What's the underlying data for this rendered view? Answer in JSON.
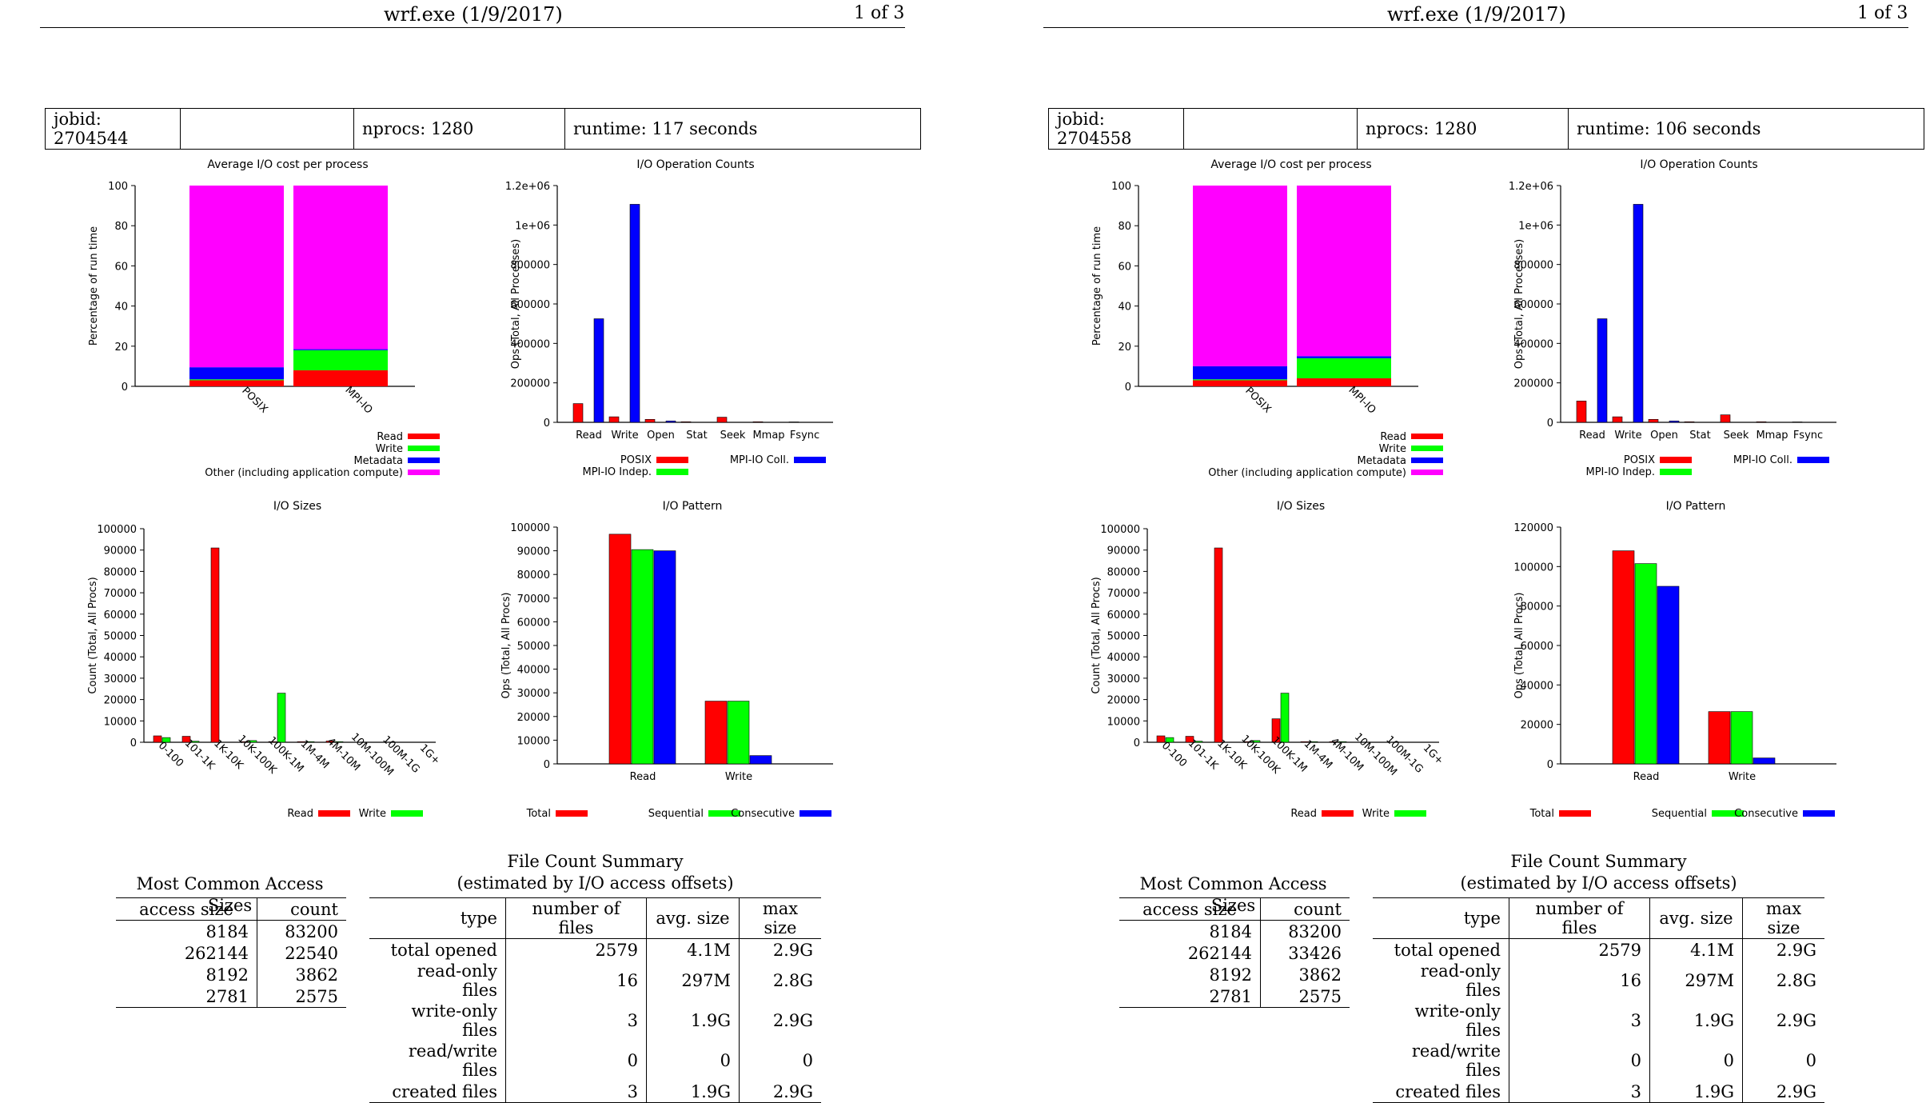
{
  "colors": {
    "red": "#ff0000",
    "green": "#00ff00",
    "blue": "#0000ff",
    "magenta": "#ff00ff"
  },
  "pages": [
    {
      "header": {
        "title": "wrf.exe (1/9/2017)",
        "page": "1 of 3"
      },
      "info": {
        "jobid": "jobid: 2704544",
        "blank": "",
        "nprocs": "nprocs: 1280",
        "runtime": "runtime: 117 seconds"
      },
      "chart_data": [
        {
          "type": "bar",
          "stacked": true,
          "title": "Average I/O cost per process",
          "ylabel": "Percentage of run time",
          "categories": [
            "POSIX",
            "MPI-IO"
          ],
          "ylim": [
            0,
            100
          ],
          "yticks": [
            "0",
            "20",
            "40",
            "60",
            "80",
            "100"
          ],
          "series": [
            {
              "name": "Read",
              "color": "red",
              "values": [
                3,
                8
              ]
            },
            {
              "name": "Write",
              "color": "green",
              "values": [
                0.5,
                10
              ]
            },
            {
              "name": "Metadata",
              "color": "blue",
              "values": [
                6,
                0.5
              ]
            },
            {
              "name": "Other (including application compute)",
              "color": "magenta",
              "values": [
                90.5,
                81.5
              ]
            }
          ],
          "legend": "bottom-right"
        },
        {
          "type": "bar",
          "title": "I/O Operation Counts",
          "ylabel": "Ops (Total, All Processes)",
          "categories": [
            "Read",
            "Write",
            "Open",
            "Stat",
            "Seek",
            "Mmap",
            "Fsync"
          ],
          "ylim": [
            0,
            1200000
          ],
          "yticks": [
            "0",
            "200000",
            "400000",
            "600000",
            "800000",
            "1e+06",
            "1.2e+06"
          ],
          "series": [
            {
              "name": "POSIX",
              "color": "red",
              "values": [
                95000,
                28000,
                15000,
                3000,
                26000,
                3000,
                2000
              ]
            },
            {
              "name": "MPI-IO Indep.",
              "color": "green",
              "values": [
                0,
                0,
                0,
                0,
                0,
                0,
                0
              ]
            },
            {
              "name": "MPI-IO Coll.",
              "color": "blue",
              "values": [
                525000,
                1105000,
                7000,
                0,
                0,
                0,
                0
              ]
            }
          ],
          "legend": "bottom"
        },
        {
          "type": "bar",
          "title": "I/O Sizes",
          "ylabel": "Count (Total, All Procs)",
          "categories": [
            "0-100",
            "101-1K",
            "1K-10K",
            "10K-100K",
            "100K-1M",
            "1M-4M",
            "4M-10M",
            "10M-100M",
            "100M-1G",
            "1G+"
          ],
          "ylim": [
            0,
            100000
          ],
          "yticks": [
            "0",
            "10000",
            "20000",
            "30000",
            "40000",
            "50000",
            "60000",
            "70000",
            "80000",
            "90000",
            "100000"
          ],
          "series": [
            {
              "name": "Read",
              "color": "red",
              "values": [
                3000,
                2800,
                91000,
                300,
                300,
                300,
                600,
                0,
                0,
                0
              ]
            },
            {
              "name": "Write",
              "color": "green",
              "values": [
                2200,
                500,
                0,
                800,
                23000,
                300,
                300,
                0,
                0,
                0
              ]
            }
          ],
          "legend": "bottom-right"
        },
        {
          "type": "bar",
          "title": "I/O Pattern",
          "ylabel": "Ops (Total, All Procs)",
          "categories": [
            "Read",
            "Write"
          ],
          "ylim": [
            0,
            100000
          ],
          "yticks": [
            "0",
            "10000",
            "20000",
            "30000",
            "40000",
            "50000",
            "60000",
            "70000",
            "80000",
            "90000",
            "100000"
          ],
          "series": [
            {
              "name": "Total",
              "color": "red",
              "values": [
                97000,
                26500
              ]
            },
            {
              "name": "Sequential",
              "color": "green",
              "values": [
                90500,
                26500
              ]
            },
            {
              "name": "Consecutive",
              "color": "blue",
              "values": [
                90000,
                3500
              ]
            }
          ],
          "legend": "bottom"
        }
      ],
      "access": {
        "title": "Most Common Access Sizes",
        "h1": "access size",
        "h2": "count",
        "rows": [
          {
            "a": "8184",
            "b": "83200"
          },
          {
            "a": "262144",
            "b": "22540"
          },
          {
            "a": "8192",
            "b": "3862"
          },
          {
            "a": "2781",
            "b": "2575"
          }
        ]
      },
      "files": {
        "title1": "File Count Summary",
        "title2": "(estimated by I/O access offsets)",
        "h1": "type",
        "h2": "number of files",
        "h3": "avg. size",
        "h4": "max size",
        "rows": [
          {
            "a": "total opened",
            "b": "2579",
            "c": "4.1M",
            "d": "2.9G"
          },
          {
            "a": "read-only files",
            "b": "16",
            "c": "297M",
            "d": "2.8G"
          },
          {
            "a": "write-only files",
            "b": "3",
            "c": "1.9G",
            "d": "2.9G"
          },
          {
            "a": "read/write files",
            "b": "0",
            "c": "0",
            "d": "0"
          },
          {
            "a": "created files",
            "b": "3",
            "c": "1.9G",
            "d": "2.9G"
          }
        ]
      }
    },
    {
      "header": {
        "title": "wrf.exe (1/9/2017)",
        "page": "1 of 3"
      },
      "info": {
        "jobid": "jobid: 2704558",
        "blank": "",
        "nprocs": "nprocs: 1280",
        "runtime": "runtime: 106 seconds"
      },
      "chart_data": [
        {
          "type": "bar",
          "stacked": true,
          "title": "Average I/O cost per process",
          "ylabel": "Percentage of run time",
          "categories": [
            "POSIX",
            "MPI-IO"
          ],
          "ylim": [
            0,
            100
          ],
          "yticks": [
            "0",
            "20",
            "40",
            "60",
            "80",
            "100"
          ],
          "series": [
            {
              "name": "Read",
              "color": "red",
              "values": [
                3,
                4
              ]
            },
            {
              "name": "Write",
              "color": "green",
              "values": [
                0.5,
                10
              ]
            },
            {
              "name": "Metadata",
              "color": "blue",
              "values": [
                6.5,
                1
              ]
            },
            {
              "name": "Other (including application compute)",
              "color": "magenta",
              "values": [
                90,
                85
              ]
            }
          ],
          "legend": "bottom-right"
        },
        {
          "type": "bar",
          "title": "I/O Operation Counts",
          "ylabel": "Ops (Total, All Processes)",
          "categories": [
            "Read",
            "Write",
            "Open",
            "Stat",
            "Seek",
            "Mmap",
            "Fsync"
          ],
          "ylim": [
            0,
            1200000
          ],
          "yticks": [
            "0",
            "200000",
            "400000",
            "600000",
            "800000",
            "1e+06",
            "1.2e+06"
          ],
          "series": [
            {
              "name": "POSIX",
              "color": "red",
              "values": [
                108000,
                28000,
                15000,
                3000,
                38000,
                3000,
                2000
              ]
            },
            {
              "name": "MPI-IO Indep.",
              "color": "green",
              "values": [
                0,
                0,
                0,
                0,
                0,
                0,
                0
              ]
            },
            {
              "name": "MPI-IO Coll.",
              "color": "blue",
              "values": [
                525000,
                1105000,
                7000,
                0,
                0,
                0,
                0
              ]
            }
          ],
          "legend": "bottom"
        },
        {
          "type": "bar",
          "title": "I/O Sizes",
          "ylabel": "Count (Total, All Procs)",
          "categories": [
            "0-100",
            "101-1K",
            "1K-10K",
            "10K-100K",
            "100K-1M",
            "1M-4M",
            "4M-10M",
            "10M-100M",
            "100M-1G",
            "1G+"
          ],
          "ylim": [
            0,
            100000
          ],
          "yticks": [
            "0",
            "10000",
            "20000",
            "30000",
            "40000",
            "50000",
            "60000",
            "70000",
            "80000",
            "90000",
            "100000"
          ],
          "series": [
            {
              "name": "Read",
              "color": "red",
              "values": [
                3000,
                2800,
                91000,
                300,
                11000,
                300,
                300,
                0,
                0,
                0
              ]
            },
            {
              "name": "Write",
              "color": "green",
              "values": [
                2200,
                500,
                0,
                800,
                23000,
                300,
                300,
                0,
                0,
                0
              ]
            }
          ],
          "legend": "bottom-right"
        },
        {
          "type": "bar",
          "title": "I/O Pattern",
          "ylabel": "Ops (Total, All Procs)",
          "categories": [
            "Read",
            "Write"
          ],
          "ylim": [
            0,
            120000
          ],
          "yticks": [
            "0",
            "20000",
            "40000",
            "60000",
            "80000",
            "100000",
            "120000"
          ],
          "series": [
            {
              "name": "Total",
              "color": "red",
              "values": [
                108000,
                26500
              ]
            },
            {
              "name": "Sequential",
              "color": "green",
              "values": [
                101500,
                26500
              ]
            },
            {
              "name": "Consecutive",
              "color": "blue",
              "values": [
                90000,
                3000
              ]
            }
          ],
          "legend": "bottom"
        }
      ],
      "access": {
        "title": "Most Common Access Sizes",
        "h1": "access size",
        "h2": "count",
        "rows": [
          {
            "a": "8184",
            "b": "83200"
          },
          {
            "a": "262144",
            "b": "33426"
          },
          {
            "a": "8192",
            "b": "3862"
          },
          {
            "a": "2781",
            "b": "2575"
          }
        ]
      },
      "files": {
        "title1": "File Count Summary",
        "title2": "(estimated by I/O access offsets)",
        "h1": "type",
        "h2": "number of files",
        "h3": "avg. size",
        "h4": "max size",
        "rows": [
          {
            "a": "total opened",
            "b": "2579",
            "c": "4.1M",
            "d": "2.9G"
          },
          {
            "a": "read-only files",
            "b": "16",
            "c": "297M",
            "d": "2.8G"
          },
          {
            "a": "write-only files",
            "b": "3",
            "c": "1.9G",
            "d": "2.9G"
          },
          {
            "a": "read/write files",
            "b": "0",
            "c": "0",
            "d": "0"
          },
          {
            "a": "created files",
            "b": "3",
            "c": "1.9G",
            "d": "2.9G"
          }
        ]
      }
    }
  ]
}
